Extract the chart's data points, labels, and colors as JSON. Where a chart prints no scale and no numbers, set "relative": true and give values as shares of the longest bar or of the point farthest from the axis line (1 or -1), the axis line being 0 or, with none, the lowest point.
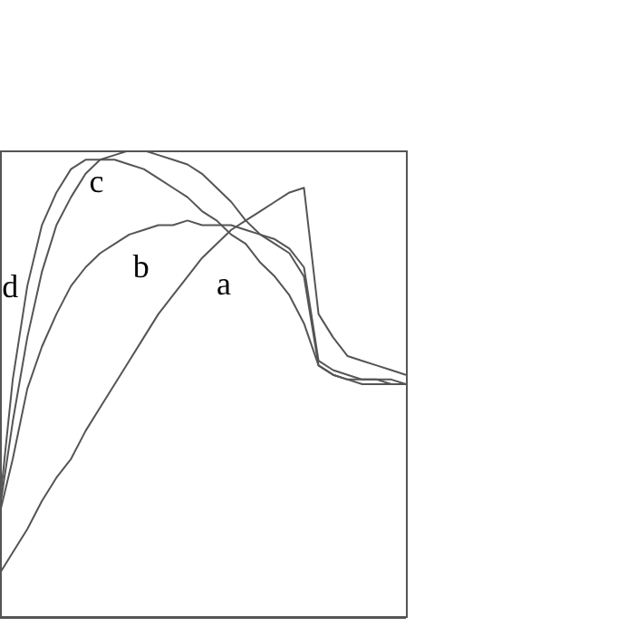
{
  "chart_data": {
    "type": "line",
    "relative": true,
    "grid": false,
    "legend": false,
    "marker": "none",
    "line_style": "solid",
    "categories": [
      null,
      null,
      null,
      null,
      null,
      null,
      null,
      null,
      null,
      null,
      null,
      null,
      null,
      null,
      null,
      null,
      null,
      null,
      null,
      null,
      null,
      null,
      null,
      null,
      null,
      null,
      null,
      null,
      null
    ],
    "series": [
      {
        "name": "a",
        "color": "#555555",
        "values": [
          0.09,
          0.14,
          0.19,
          0.25,
          0.3,
          0.34,
          0.4,
          0.45,
          0.5,
          0.55,
          0.6,
          0.65,
          0.69,
          0.73,
          0.77,
          0.8,
          0.83,
          0.85,
          0.87,
          0.89,
          0.91,
          0.92,
          0.65,
          0.6,
          0.56,
          0.55,
          0.54,
          0.53,
          0.52
        ]
      },
      {
        "name": "b",
        "color": "#555555",
        "values": [
          0.21,
          0.34,
          0.49,
          0.58,
          0.65,
          0.71,
          0.75,
          0.78,
          0.8,
          0.82,
          0.83,
          0.84,
          0.84,
          0.85,
          0.84,
          0.84,
          0.84,
          0.83,
          0.82,
          0.81,
          0.79,
          0.75,
          0.55,
          0.53,
          0.52,
          0.51,
          0.51,
          0.51,
          0.5
        ]
      },
      {
        "name": "c",
        "color": "#555555",
        "values": [
          0.21,
          0.42,
          0.6,
          0.74,
          0.84,
          0.9,
          0.95,
          0.98,
          0.99,
          1,
          1,
          0.99,
          0.98,
          0.97,
          0.95,
          0.92,
          0.89,
          0.85,
          0.82,
          0.8,
          0.78,
          0.73,
          0.54,
          0.52,
          0.51,
          0.5,
          0.5,
          0.5,
          0.5
        ]
      },
      {
        "name": "d",
        "color": "#555555",
        "values": [
          0.21,
          0.51,
          0.71,
          0.84,
          0.91,
          0.96,
          0.98,
          0.98,
          0.98,
          0.97,
          0.96,
          0.94,
          0.92,
          0.9,
          0.87,
          0.85,
          0.82,
          0.8,
          0.76,
          0.73,
          0.69,
          0.63,
          0.54,
          0.52,
          0.51,
          0.51,
          0.51,
          0.5,
          0.5
        ]
      }
    ]
  }
}
